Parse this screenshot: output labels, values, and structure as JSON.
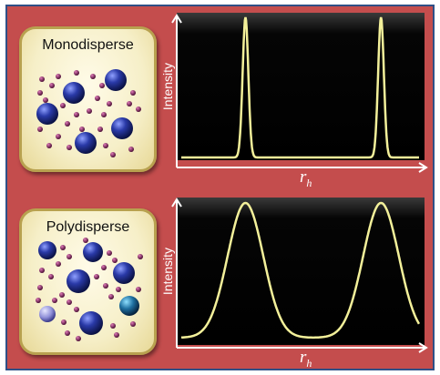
{
  "panels": [
    {
      "id": "top",
      "box_label": "Monodisperse",
      "ylabel": "Intensity",
      "xlabel_main": "r",
      "xlabel_sub": "h",
      "peaks": [
        {
          "center": 0.27,
          "width": "narrow"
        },
        {
          "center": 0.84,
          "width": "narrow"
        }
      ]
    },
    {
      "id": "bottom",
      "box_label": "Polydisperse",
      "ylabel": "Intensity",
      "xlabel_main": "r",
      "xlabel_sub": "h",
      "peaks": [
        {
          "center": 0.27,
          "width": "broad"
        },
        {
          "center": 0.84,
          "width": "broad"
        }
      ]
    }
  ],
  "colors": {
    "background": "#c44d4d",
    "border": "#2f4f86",
    "curve": "#f3f09a",
    "axis": "#ffffff",
    "large_particle": "#1f2f8c",
    "small_particle": "#7a1f5a"
  }
}
